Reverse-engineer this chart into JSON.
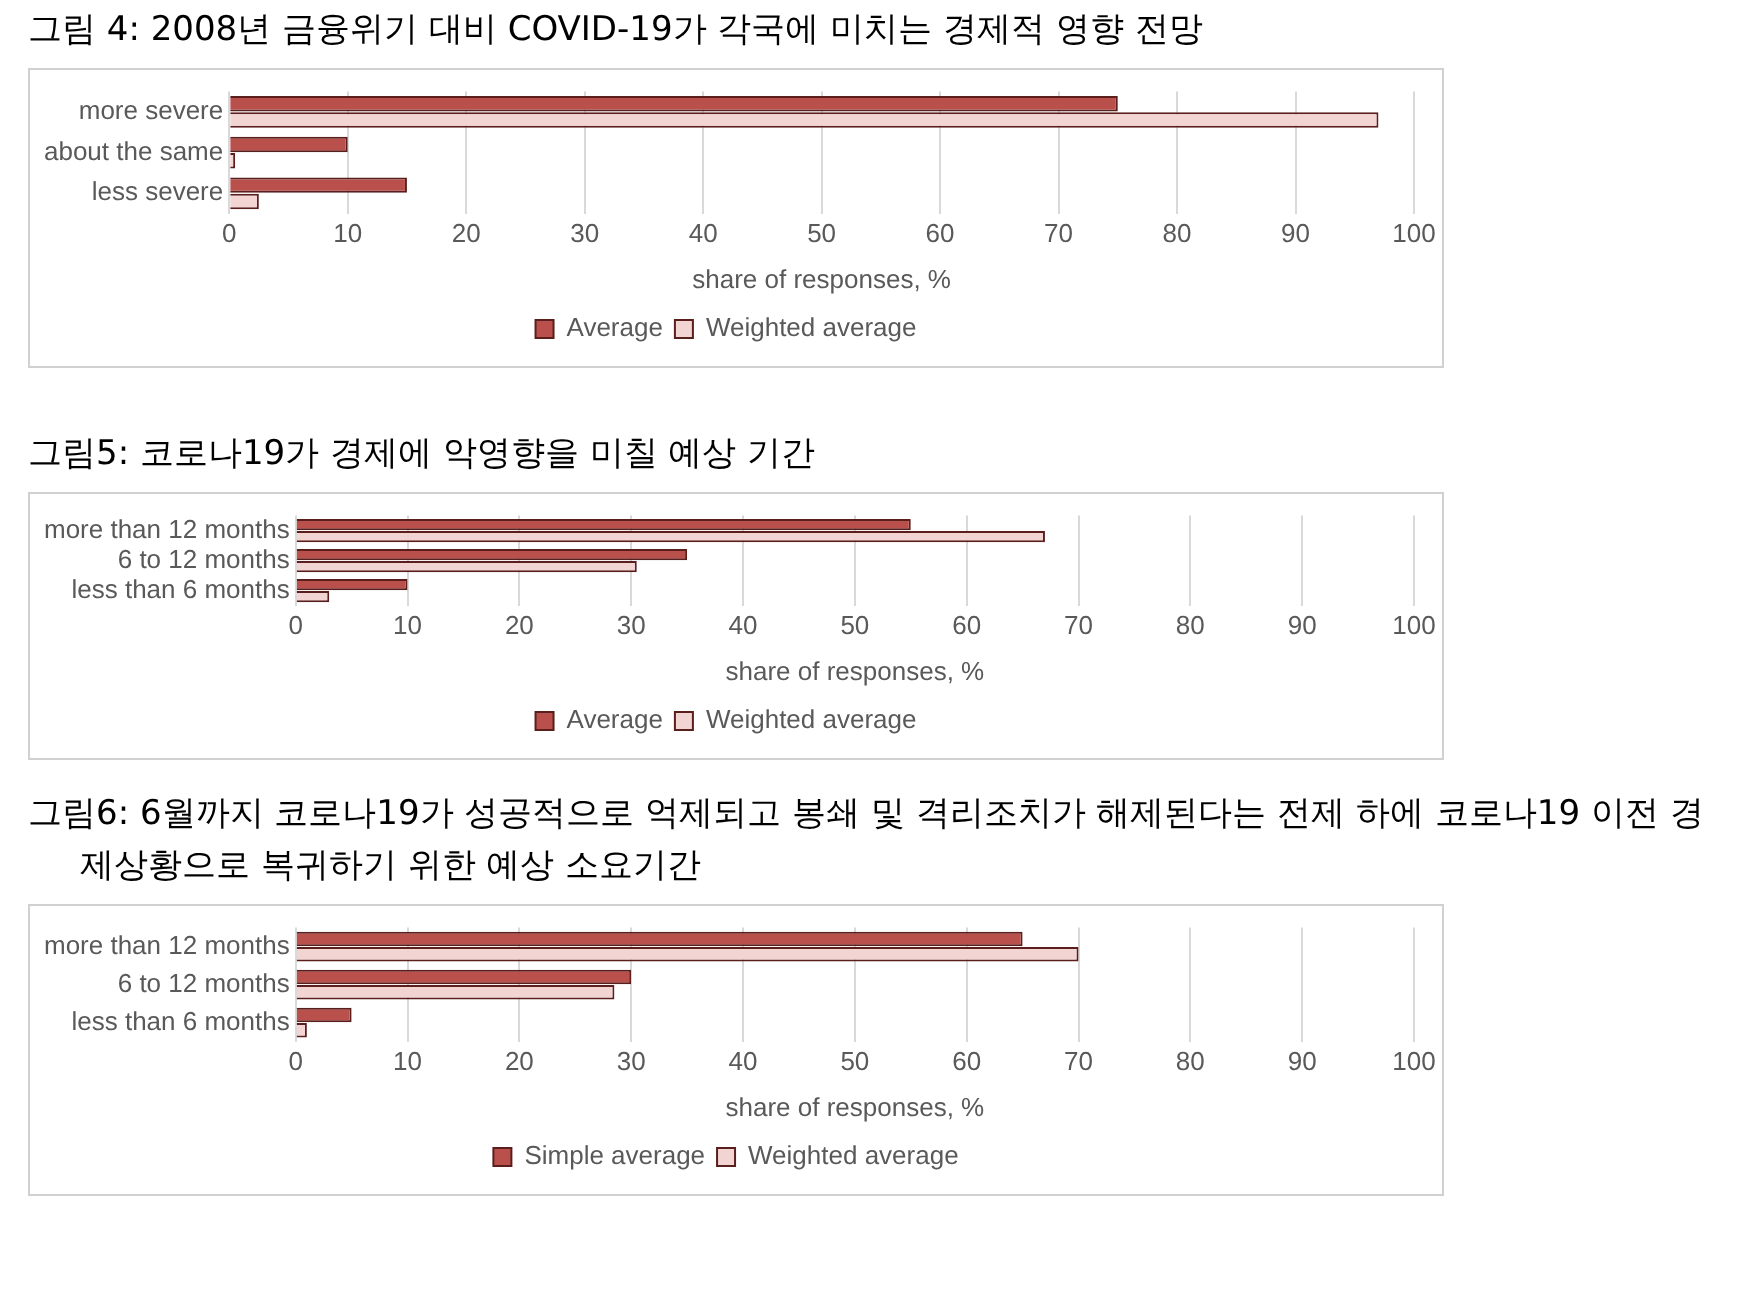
{
  "chart_data": [
    {
      "type": "bar",
      "orientation": "horizontal",
      "title": "그림 4: 2008년 금융위기 대비 COVID-19가 각국에 미치는 경제적 영향 전망",
      "xlabel": "share of responses, %",
      "categories": [
        "more severe",
        "about the same",
        "less severe"
      ],
      "series": [
        {
          "name": "Average",
          "color": "#b9504c",
          "values": [
            75,
            10,
            15
          ]
        },
        {
          "name": "Weighted average",
          "color": "#f2d4d3",
          "values": [
            97,
            0.5,
            2.5
          ]
        }
      ],
      "xlim": [
        0,
        100
      ],
      "xticks": [
        0,
        10,
        20,
        30,
        40,
        50,
        60,
        70,
        80,
        90,
        100
      ],
      "grid": "x",
      "legend": "bottom"
    },
    {
      "type": "bar",
      "orientation": "horizontal",
      "title": "그림5: 코로나19가 경제에 악영향을 미칠 예상 기간",
      "xlabel": "share of responses, %",
      "categories": [
        "more than 12 months",
        "6 to 12 months",
        "less than 6 months"
      ],
      "series": [
        {
          "name": "Average",
          "color": "#b9504c",
          "values": [
            55,
            35,
            10
          ]
        },
        {
          "name": "Weighted average",
          "color": "#f2d4d3",
          "values": [
            67,
            30.5,
            3
          ]
        }
      ],
      "xlim": [
        0,
        100
      ],
      "xticks": [
        0,
        10,
        20,
        30,
        40,
        50,
        60,
        70,
        80,
        90,
        100
      ],
      "grid": "x",
      "legend": "bottom"
    },
    {
      "type": "bar",
      "orientation": "horizontal",
      "title": "그림6: 6월까지 코로나19가 성공적으로 억제되고 봉쇄 및 격리조치가 해제된다는 전제 하에 코로나19 이전 경제상황으로 복귀하기 위한 예상 소요기간",
      "xlabel": "share of responses, %",
      "categories": [
        "more than 12 months",
        "6 to 12 months",
        "less than 6 months"
      ],
      "series": [
        {
          "name": "Simple average",
          "color": "#b9504c",
          "values": [
            65,
            30,
            5
          ]
        },
        {
          "name": "Weighted average",
          "color": "#f2d4d3",
          "values": [
            70,
            28.5,
            1
          ]
        }
      ],
      "xlim": [
        0,
        100
      ],
      "xticks": [
        0,
        10,
        20,
        30,
        40,
        50,
        60,
        70,
        80,
        90,
        100
      ],
      "grid": "x",
      "legend": "bottom"
    }
  ]
}
